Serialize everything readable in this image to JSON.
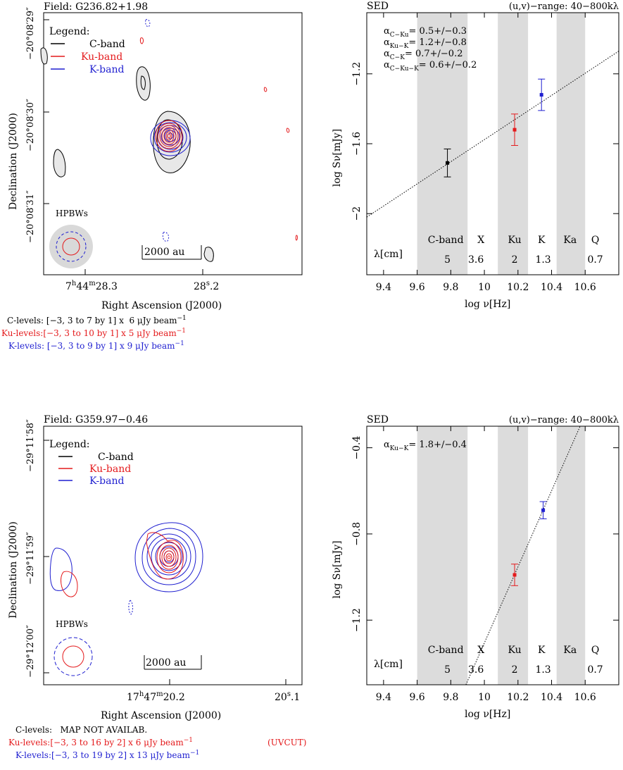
{
  "panels": [
    {
      "field_label": "Field: G236.82+1.98",
      "dec_ticks": [
        "−20°08′29″",
        "−20°08′30″",
        "−20°08′31″"
      ],
      "ra_ticks": [
        {
          "h": "7",
          "hs": "h",
          "m": "44",
          "ms": "m",
          "s": "28",
          "ss": "s",
          ".": "3",
          "kind": "full"
        },
        {
          "s": "28",
          "ss": "s",
          "frac": ".2",
          "kind": "short"
        }
      ],
      "ylabel": "Declination (J2000)",
      "xlabel": "Right Ascension (J2000)",
      "legend_title": "Legend:",
      "legend_items": [
        {
          "label": "C-band",
          "color": "#000000"
        },
        {
          "label": "Ku-band",
          "color": "#e41a1c"
        },
        {
          "label": "K-band",
          "color": "#1f1fd0"
        }
      ],
      "hpbw_label": "HPBWs",
      "scale_label": "2000 au",
      "levels": [
        {
          "name": "C-levels:",
          "text": " [−3, 3 to 7 by 1] x  6 μJy beam",
          "exp": "−1",
          "color": "#000000",
          "extra": ""
        },
        {
          "name": "Ku-levels:",
          "text": "[−3, 3 to 10 by 1] x  5 μJy beam",
          "exp": "−1",
          "color": "#e41a1c",
          "extra": ""
        },
        {
          "name": "K-levels:",
          "text": " [−3, 3 to 9 by 1] x  9 μJy beam",
          "exp": "−1",
          "color": "#1f1fd0",
          "extra": ""
        }
      ]
    },
    {
      "field_label": "Field: G359.97−0.46",
      "dec_ticks": [
        "−29°11′58″",
        "−29°11′59″",
        "−29°12′00″"
      ],
      "ra_ticks": [
        {
          "h": "17",
          "hs": "h",
          "m": "47",
          "ms": "m",
          "s": "20",
          "ss": "s",
          ".": "2",
          "kind": "full"
        },
        {
          "s": "20",
          "ss": "s",
          "frac": ".1",
          "kind": "short"
        }
      ],
      "ylabel": "Declination (J2000)",
      "xlabel": "Right Ascension (J2000)",
      "legend_title": "Legend:",
      "legend_items": [
        {
          "label": "C-band",
          "color": "#000000"
        },
        {
          "label": "Ku-band",
          "color": "#e41a1c"
        },
        {
          "label": "K-band",
          "color": "#1f1fd0"
        }
      ],
      "hpbw_label": "HPBWs",
      "scale_label": "2000 au",
      "levels": [
        {
          "name": "C-levels:",
          "text": "   MAP NOT AVAILAB.",
          "exp": "",
          "color": "#000000",
          "extra": ""
        },
        {
          "name": "Ku-levels:",
          "text": "[−3, 3 to 16 by 2] x  6 μJy beam",
          "exp": "−1",
          "color": "#e41a1c",
          "extra": "(UVCUT)"
        },
        {
          "name": "K-levels:",
          "text": "[−3, 3 to 19 by 2] x 13 μJy beam",
          "exp": "−1",
          "color": "#1f1fd0",
          "extra": ""
        }
      ]
    }
  ],
  "chart_data": [
    {
      "type": "scatter",
      "title": "SED",
      "uv_range": "(u,v)−range:  40−800kλ",
      "xlabel": "log ν[Hz]",
      "ylabel": "log Sν[mJy]",
      "xlim": [
        9.3,
        10.8
      ],
      "ylim": [
        -2.35,
        -0.85
      ],
      "xticks": [
        9.4,
        9.6,
        9.8,
        10,
        10.2,
        10.4,
        10.6
      ],
      "xtick_labels": [
        "9.4",
        "9.6",
        "9.8",
        "10",
        "10.2",
        "10.4",
        "10.6"
      ],
      "yticks": [
        -2,
        -1.6,
        -1.2
      ],
      "ytick_labels": [
        "−2",
        "−1.6",
        "−1.2"
      ],
      "bands": [
        [
          9.6,
          9.9
        ],
        [
          10.08,
          10.26
        ],
        [
          10.43,
          10.6
        ]
      ],
      "band_names": [
        {
          "x": 9.77,
          "t": "C-band"
        },
        {
          "x": 9.98,
          "t": "X"
        },
        {
          "x": 10.18,
          "t": "Ku"
        },
        {
          "x": 10.34,
          "t": "K"
        },
        {
          "x": 10.51,
          "t": "Ka"
        },
        {
          "x": 10.66,
          "t": "Q"
        }
      ],
      "lambda_label": "λ[cm]",
      "lambda_values": [
        {
          "x": 9.78,
          "t": "5"
        },
        {
          "x": 9.95,
          "t": "3.6"
        },
        {
          "x": 10.18,
          "t": "2"
        },
        {
          "x": 10.35,
          "t": "1.3"
        },
        {
          "x": 10.66,
          "t": "0.7"
        }
      ],
      "points": [
        {
          "x": 9.78,
          "y": -1.71,
          "err": 0.08,
          "color": "#000000",
          "name": "C-band"
        },
        {
          "x": 10.18,
          "y": -1.52,
          "err": 0.09,
          "color": "#e41a1c",
          "name": "Ku-band"
        },
        {
          "x": 10.34,
          "y": -1.32,
          "err": 0.09,
          "color": "#1f1fd0",
          "name": "K-band"
        }
      ],
      "fit_line": [
        [
          9.3,
          -2.02
        ],
        [
          10.8,
          -1.07
        ]
      ],
      "alphas": [
        {
          "sub": "C−Ku",
          "val": "=  0.5+/−0.3"
        },
        {
          "sub": "Ku−K",
          "val": "=  1.2+/−0.8"
        },
        {
          "sub": "C−K",
          "val": "=  0.7+/−0.2"
        },
        {
          "sub": "C−Ku−K",
          "val": "=  0.6+/−0.2"
        }
      ]
    },
    {
      "type": "scatter",
      "title": "SED",
      "uv_range": "(u,v)−range:  40−800kλ",
      "xlabel": "log ν[Hz]",
      "ylabel": "log Sν[mJy]",
      "xlim": [
        9.3,
        10.8
      ],
      "ylim": [
        -1.5,
        -0.3
      ],
      "xticks": [
        9.4,
        9.6,
        9.8,
        10,
        10.2,
        10.4,
        10.6
      ],
      "xtick_labels": [
        "9.4",
        "9.6",
        "9.8",
        "10",
        "10.2",
        "10.4",
        "10.6"
      ],
      "yticks": [
        -1.2,
        -0.8,
        -0.4
      ],
      "ytick_labels": [
        "−1.2",
        "−0.8",
        "−0.4"
      ],
      "bands": [
        [
          9.6,
          9.9
        ],
        [
          10.08,
          10.26
        ],
        [
          10.43,
          10.6
        ]
      ],
      "band_names": [
        {
          "x": 9.77,
          "t": "C-band"
        },
        {
          "x": 9.98,
          "t": "X"
        },
        {
          "x": 10.18,
          "t": "Ku"
        },
        {
          "x": 10.34,
          "t": "K"
        },
        {
          "x": 10.51,
          "t": "Ka"
        },
        {
          "x": 10.66,
          "t": "Q"
        }
      ],
      "lambda_label": "λ[cm]",
      "lambda_values": [
        {
          "x": 9.78,
          "t": "5"
        },
        {
          "x": 9.95,
          "t": "3.6"
        },
        {
          "x": 10.18,
          "t": "2"
        },
        {
          "x": 10.35,
          "t": "1.3"
        },
        {
          "x": 10.66,
          "t": "0.7"
        }
      ],
      "points": [
        {
          "x": 10.18,
          "y": -0.99,
          "err": 0.05,
          "color": "#e41a1c",
          "name": "Ku-band"
        },
        {
          "x": 10.35,
          "y": -0.69,
          "err": 0.04,
          "color": "#1f1fd0",
          "name": "K-band"
        }
      ],
      "fit_line": [
        [
          9.89,
          -1.5
        ],
        [
          10.57,
          -0.3
        ]
      ],
      "alphas": [
        {
          "sub": "Ku−K",
          "val": "=  1.8+/−0.4"
        }
      ]
    }
  ]
}
